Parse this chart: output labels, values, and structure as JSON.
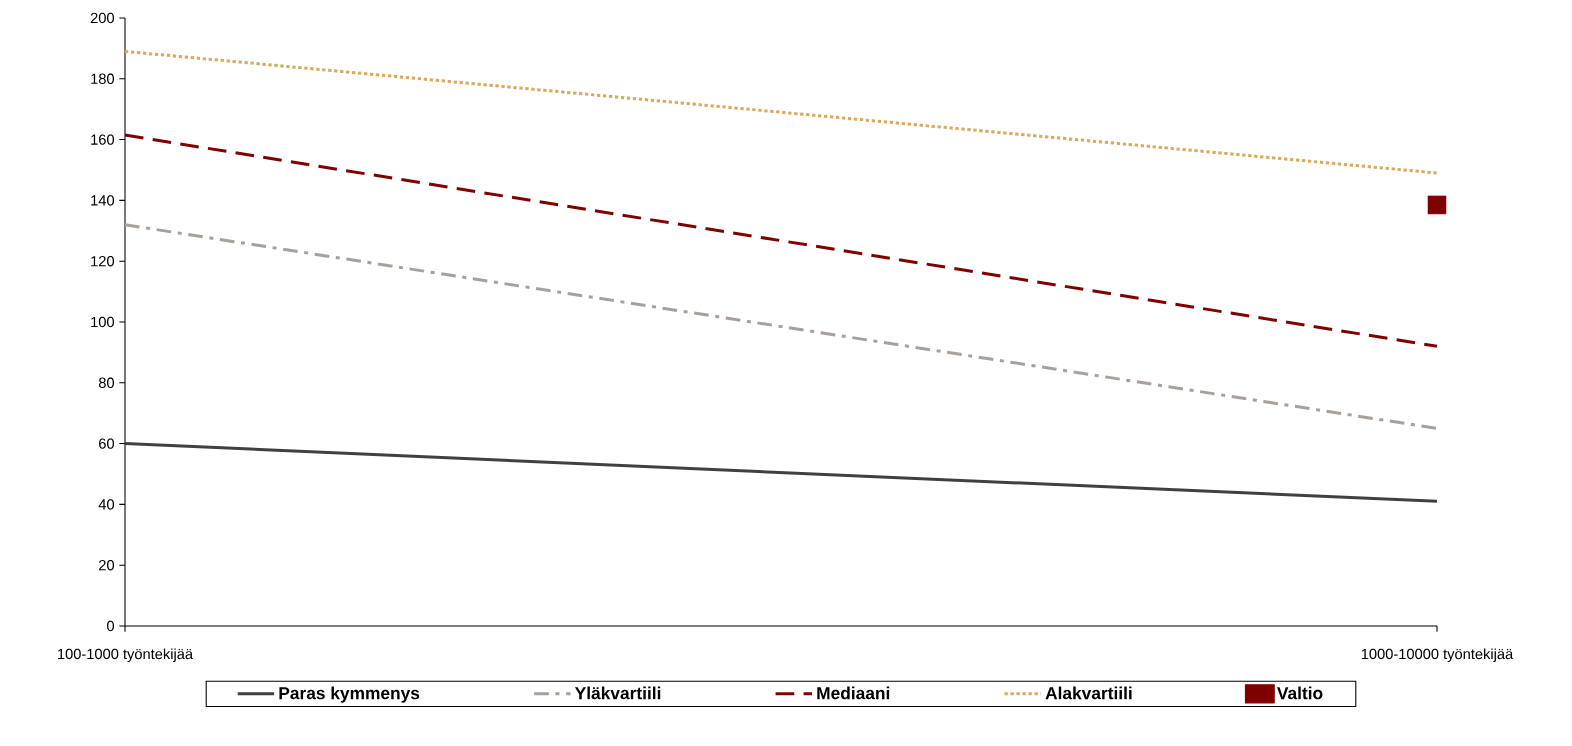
{
  "chart_data": {
    "type": "line",
    "categories": [
      "100-1000 työntekijää",
      "1000-10000 työntekijää"
    ],
    "ylim": [
      0,
      200
    ],
    "yticks": [
      0,
      20,
      40,
      60,
      80,
      100,
      120,
      140,
      160,
      180,
      200
    ],
    "grid": false,
    "legend": "bottom",
    "series": [
      {
        "name": "Paras kymmenys",
        "color": "#404040",
        "values": [
          60,
          41
        ],
        "line_style": "solid",
        "marker": "none"
      },
      {
        "name": "Yläkvartiili",
        "color": "#a6a19c",
        "values": [
          132,
          65
        ],
        "line_style": "dashdot",
        "marker": "none"
      },
      {
        "name": "Mediaani",
        "color": "#800000",
        "values": [
          161.5,
          92
        ],
        "line_style": "dashed",
        "marker": "none"
      },
      {
        "name": "Alakvartiili",
        "color": "#d9a95e",
        "values": [
          189,
          149
        ],
        "line_style": "dotted",
        "marker": "none"
      },
      {
        "name": "Valtio",
        "color": "#800000",
        "type": "scatter",
        "values": [
          null,
          138.5
        ],
        "marker": "square"
      }
    ]
  }
}
